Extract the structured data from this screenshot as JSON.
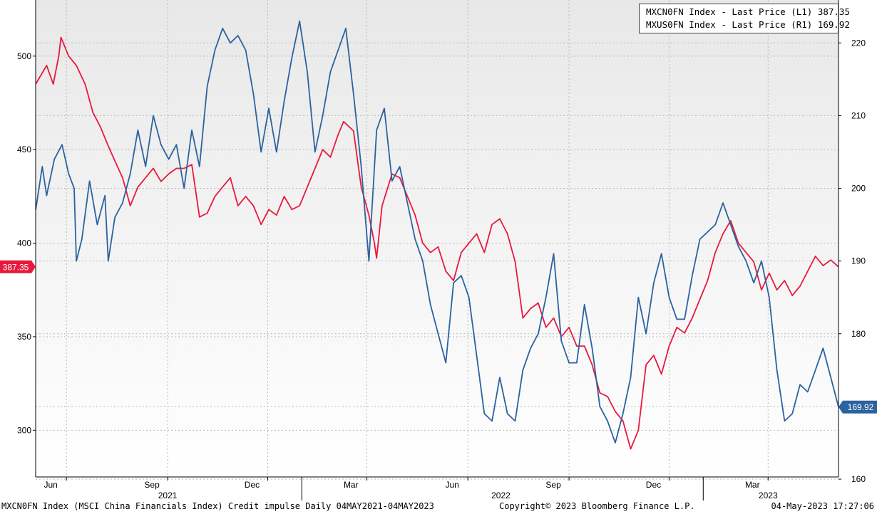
{
  "chart_data": {
    "type": "line",
    "x_range": [
      "2021-05-04",
      "2023-05-04"
    ],
    "left_axis": {
      "ylim": [
        275,
        530
      ],
      "ticks": [
        300,
        350,
        400,
        450,
        500
      ]
    },
    "right_axis": {
      "ylim": [
        160.3,
        225.9
      ],
      "ticks": [
        160,
        170,
        180,
        190,
        200,
        210,
        220
      ]
    },
    "x_tick_labels": [
      {
        "label": "Jun",
        "date": "2021-06-01"
      },
      {
        "label": "Sep",
        "date": "2021-09-01"
      },
      {
        "label": "Dec",
        "date": "2021-12-01"
      },
      {
        "label": "Mar",
        "date": "2022-03-01"
      },
      {
        "label": "Jun",
        "date": "2022-06-01"
      },
      {
        "label": "Sep",
        "date": "2022-09-01"
      },
      {
        "label": "Dec",
        "date": "2022-12-01"
      },
      {
        "label": "Mar",
        "date": "2023-03-01"
      }
    ],
    "year_labels": [
      {
        "label": "2021",
        "date": "2021-09-01"
      },
      {
        "label": "2022",
        "date": "2022-07-01"
      },
      {
        "label": "2023",
        "date": "2023-03-01"
      }
    ],
    "year_separators": [
      "2022-01-01",
      "2023-01-01"
    ],
    "grid": true,
    "legend_position": "top-right",
    "series": [
      {
        "name": "MXCN0FN Index - Last Price (L1) 387.35",
        "axis": "left",
        "color": "#e8193c",
        "last_value_label": "387.35",
        "points": [
          [
            "2021-05-04",
            485
          ],
          [
            "2021-05-14",
            495
          ],
          [
            "2021-05-20",
            485
          ],
          [
            "2021-05-25",
            500
          ],
          [
            "2021-05-27",
            510
          ],
          [
            "2021-06-03",
            500
          ],
          [
            "2021-06-10",
            495
          ],
          [
            "2021-06-18",
            485
          ],
          [
            "2021-06-25",
            470
          ],
          [
            "2021-07-02",
            462
          ],
          [
            "2021-07-09",
            452
          ],
          [
            "2021-07-15",
            444
          ],
          [
            "2021-07-22",
            435
          ],
          [
            "2021-07-29",
            420
          ],
          [
            "2021-08-05",
            430
          ],
          [
            "2021-08-12",
            435
          ],
          [
            "2021-08-19",
            440
          ],
          [
            "2021-08-26",
            433
          ],
          [
            "2021-09-02",
            437
          ],
          [
            "2021-09-09",
            440
          ],
          [
            "2021-09-16",
            440
          ],
          [
            "2021-09-23",
            442
          ],
          [
            "2021-09-30",
            414
          ],
          [
            "2021-10-07",
            416
          ],
          [
            "2021-10-14",
            425
          ],
          [
            "2021-10-21",
            430
          ],
          [
            "2021-10-28",
            435
          ],
          [
            "2021-11-04",
            420
          ],
          [
            "2021-11-11",
            425
          ],
          [
            "2021-11-18",
            420
          ],
          [
            "2021-11-25",
            410
          ],
          [
            "2021-12-02",
            418
          ],
          [
            "2021-12-09",
            415
          ],
          [
            "2021-12-16",
            425
          ],
          [
            "2021-12-23",
            418
          ],
          [
            "2021-12-30",
            420
          ],
          [
            "2022-01-06",
            430
          ],
          [
            "2022-01-13",
            440
          ],
          [
            "2022-01-20",
            450
          ],
          [
            "2022-01-27",
            446
          ],
          [
            "2022-02-03",
            458
          ],
          [
            "2022-02-08",
            465
          ],
          [
            "2022-02-17",
            460
          ],
          [
            "2022-02-24",
            430
          ],
          [
            "2022-03-03",
            415
          ],
          [
            "2022-03-08",
            400
          ],
          [
            "2022-03-10",
            392
          ],
          [
            "2022-03-15",
            420
          ],
          [
            "2022-03-24",
            437
          ],
          [
            "2022-03-31",
            435
          ],
          [
            "2022-04-07",
            425
          ],
          [
            "2022-04-14",
            415
          ],
          [
            "2022-04-21",
            400
          ],
          [
            "2022-04-28",
            395
          ],
          [
            "2022-05-05",
            398
          ],
          [
            "2022-05-12",
            385
          ],
          [
            "2022-05-19",
            380
          ],
          [
            "2022-05-26",
            395
          ],
          [
            "2022-06-02",
            400
          ],
          [
            "2022-06-09",
            405
          ],
          [
            "2022-06-16",
            395
          ],
          [
            "2022-06-23",
            410
          ],
          [
            "2022-06-30",
            413
          ],
          [
            "2022-07-07",
            405
          ],
          [
            "2022-07-14",
            390
          ],
          [
            "2022-07-21",
            360
          ],
          [
            "2022-07-28",
            365
          ],
          [
            "2022-08-04",
            368
          ],
          [
            "2022-08-11",
            355
          ],
          [
            "2022-08-18",
            360
          ],
          [
            "2022-08-25",
            350
          ],
          [
            "2022-09-01",
            355
          ],
          [
            "2022-09-08",
            345
          ],
          [
            "2022-09-15",
            345
          ],
          [
            "2022-09-22",
            335
          ],
          [
            "2022-09-29",
            320
          ],
          [
            "2022-10-06",
            318
          ],
          [
            "2022-10-13",
            310
          ],
          [
            "2022-10-20",
            305
          ],
          [
            "2022-10-27",
            290
          ],
          [
            "2022-11-03",
            300
          ],
          [
            "2022-11-10",
            335
          ],
          [
            "2022-11-17",
            340
          ],
          [
            "2022-11-24",
            330
          ],
          [
            "2022-12-01",
            345
          ],
          [
            "2022-12-08",
            355
          ],
          [
            "2022-12-15",
            352
          ],
          [
            "2022-12-22",
            360
          ],
          [
            "2022-12-29",
            370
          ],
          [
            "2023-01-05",
            380
          ],
          [
            "2023-01-12",
            395
          ],
          [
            "2023-01-19",
            405
          ],
          [
            "2023-01-26",
            412
          ],
          [
            "2023-02-02",
            400
          ],
          [
            "2023-02-09",
            395
          ],
          [
            "2023-02-16",
            390
          ],
          [
            "2023-02-23",
            375
          ],
          [
            "2023-03-02",
            384
          ],
          [
            "2023-03-09",
            375
          ],
          [
            "2023-03-16",
            380
          ],
          [
            "2023-03-23",
            372
          ],
          [
            "2023-03-30",
            377
          ],
          [
            "2023-04-06",
            385
          ],
          [
            "2023-04-13",
            393
          ],
          [
            "2023-04-20",
            388
          ],
          [
            "2023-04-27",
            391
          ],
          [
            "2023-05-04",
            387.35
          ]
        ]
      },
      {
        "name": "MXUS0FN Index - Last Price (R1) 169.92",
        "axis": "right",
        "color": "#2b62a0",
        "last_value_label": "169.92",
        "points": [
          [
            "2021-05-04",
            197
          ],
          [
            "2021-05-10",
            203
          ],
          [
            "2021-05-14",
            199
          ],
          [
            "2021-05-21",
            204
          ],
          [
            "2021-05-28",
            206
          ],
          [
            "2021-06-03",
            202
          ],
          [
            "2021-06-08",
            200
          ],
          [
            "2021-06-10",
            190
          ],
          [
            "2021-06-15",
            193
          ],
          [
            "2021-06-22",
            201
          ],
          [
            "2021-06-29",
            195
          ],
          [
            "2021-07-06",
            199
          ],
          [
            "2021-07-09",
            190
          ],
          [
            "2021-07-15",
            196
          ],
          [
            "2021-07-22",
            198
          ],
          [
            "2021-07-29",
            202
          ],
          [
            "2021-08-05",
            208
          ],
          [
            "2021-08-12",
            203
          ],
          [
            "2021-08-19",
            210
          ],
          [
            "2021-08-26",
            206
          ],
          [
            "2021-09-02",
            204
          ],
          [
            "2021-09-09",
            206
          ],
          [
            "2021-09-16",
            200
          ],
          [
            "2021-09-23",
            208
          ],
          [
            "2021-09-30",
            203
          ],
          [
            "2021-10-07",
            214
          ],
          [
            "2021-10-14",
            219
          ],
          [
            "2021-10-21",
            222
          ],
          [
            "2021-10-28",
            220
          ],
          [
            "2021-11-04",
            221
          ],
          [
            "2021-11-11",
            219
          ],
          [
            "2021-11-18",
            213
          ],
          [
            "2021-11-25",
            205
          ],
          [
            "2021-12-02",
            211
          ],
          [
            "2021-12-09",
            205
          ],
          [
            "2021-12-16",
            212
          ],
          [
            "2021-12-23",
            218
          ],
          [
            "2021-12-30",
            223
          ],
          [
            "2022-01-06",
            216
          ],
          [
            "2022-01-13",
            205
          ],
          [
            "2022-01-20",
            210
          ],
          [
            "2022-01-27",
            216
          ],
          [
            "2022-02-03",
            219
          ],
          [
            "2022-02-10",
            222
          ],
          [
            "2022-02-17",
            213
          ],
          [
            "2022-02-24",
            203
          ],
          [
            "2022-03-03",
            190
          ],
          [
            "2022-03-10",
            208
          ],
          [
            "2022-03-17",
            211
          ],
          [
            "2022-03-24",
            201
          ],
          [
            "2022-03-31",
            203
          ],
          [
            "2022-04-07",
            198
          ],
          [
            "2022-04-14",
            193
          ],
          [
            "2022-04-21",
            190
          ],
          [
            "2022-04-28",
            184
          ],
          [
            "2022-05-05",
            180
          ],
          [
            "2022-05-12",
            176
          ],
          [
            "2022-05-19",
            187
          ],
          [
            "2022-05-26",
            188
          ],
          [
            "2022-06-02",
            185
          ],
          [
            "2022-06-09",
            177
          ],
          [
            "2022-06-16",
            169
          ],
          [
            "2022-06-23",
            168
          ],
          [
            "2022-06-30",
            174
          ],
          [
            "2022-07-07",
            169
          ],
          [
            "2022-07-14",
            168
          ],
          [
            "2022-07-21",
            175
          ],
          [
            "2022-07-28",
            178
          ],
          [
            "2022-08-04",
            180
          ],
          [
            "2022-08-11",
            185
          ],
          [
            "2022-08-18",
            191
          ],
          [
            "2022-08-25",
            179
          ],
          [
            "2022-09-01",
            176
          ],
          [
            "2022-09-08",
            176
          ],
          [
            "2022-09-15",
            184
          ],
          [
            "2022-09-22",
            178
          ],
          [
            "2022-09-29",
            170
          ],
          [
            "2022-10-06",
            168
          ],
          [
            "2022-10-13",
            165
          ],
          [
            "2022-10-20",
            169
          ],
          [
            "2022-10-27",
            174
          ],
          [
            "2022-11-03",
            185
          ],
          [
            "2022-11-10",
            180
          ],
          [
            "2022-11-17",
            187
          ],
          [
            "2022-11-24",
            191
          ],
          [
            "2022-12-01",
            185
          ],
          [
            "2022-12-08",
            182
          ],
          [
            "2022-12-15",
            182
          ],
          [
            "2022-12-22",
            188
          ],
          [
            "2022-12-29",
            193
          ],
          [
            "2023-01-05",
            194
          ],
          [
            "2023-01-12",
            195
          ],
          [
            "2023-01-19",
            198
          ],
          [
            "2023-01-26",
            195
          ],
          [
            "2023-02-02",
            192
          ],
          [
            "2023-02-09",
            190
          ],
          [
            "2023-02-16",
            187
          ],
          [
            "2023-02-23",
            190
          ],
          [
            "2023-03-02",
            185
          ],
          [
            "2023-03-09",
            175
          ],
          [
            "2023-03-16",
            168
          ],
          [
            "2023-03-23",
            169
          ],
          [
            "2023-03-30",
            173
          ],
          [
            "2023-04-06",
            172
          ],
          [
            "2023-04-13",
            175
          ],
          [
            "2023-04-20",
            178
          ],
          [
            "2023-04-27",
            174
          ],
          [
            "2023-05-04",
            169.92
          ]
        ]
      }
    ]
  },
  "footer": {
    "left": "MXCN0FN Index (MSCI China Financials Index) Credit impulse  Daily 04MAY2021-04MAY2023",
    "center": "Copyright© 2023 Bloomberg Finance L.P.",
    "right": "04-May-2023 17:27:06"
  }
}
